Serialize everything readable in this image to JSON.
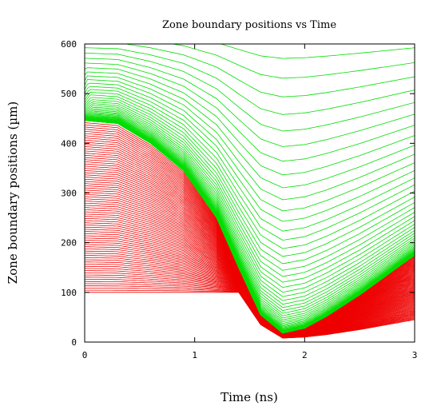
{
  "chart_data": {
    "type": "line",
    "title": "Zone boundary positions vs Time",
    "xlabel": "Time (ns)",
    "ylabel": "Zone boundary positions (µm)",
    "xlim": [
      0,
      3
    ],
    "ylim": [
      0,
      600
    ],
    "x_ticks": [
      "0",
      "1",
      "2",
      "3"
    ],
    "y_ticks": [
      "0",
      "100",
      "200",
      "300",
      "400",
      "500",
      "600"
    ],
    "grid": false,
    "colors": {
      "outer": "#00dd00",
      "inner": "#ee0000",
      "axes": "#000000"
    },
    "series": [
      {
        "group": "outer",
        "color": "#00dd00",
        "zones": 64,
        "initial_position_range": [
          446,
          470
        ],
        "x": [
          0,
          0.3,
          0.6,
          0.9,
          1.2,
          1.4,
          1.6,
          1.8,
          2.0,
          2.2,
          2.5,
          3.0
        ],
        "lower_envelope": [
          446,
          440,
          400,
          345,
          250,
          150,
          55,
          18,
          28,
          52,
          95,
          175
        ],
        "outermost_zone": [
          470,
          600,
          600,
          600,
          600,
          600,
          600,
          600,
          600,
          600,
          600,
          600
        ]
      },
      {
        "group": "inner",
        "color": "#ee0000",
        "zones": 80,
        "initial_position_range": [
          100,
          446
        ],
        "x": [
          0,
          0.3,
          0.6,
          0.9,
          1.2,
          1.4,
          1.6,
          1.8,
          2.0,
          2.2,
          2.5,
          3.0
        ],
        "compressed_front": [
          446,
          440,
          400,
          345,
          250,
          150,
          55,
          18,
          28,
          52,
          95,
          175
        ],
        "innermost_zone": [
          100,
          100,
          100,
          100,
          100,
          100,
          35,
          8,
          10,
          15,
          25,
          45
        ]
      }
    ]
  }
}
